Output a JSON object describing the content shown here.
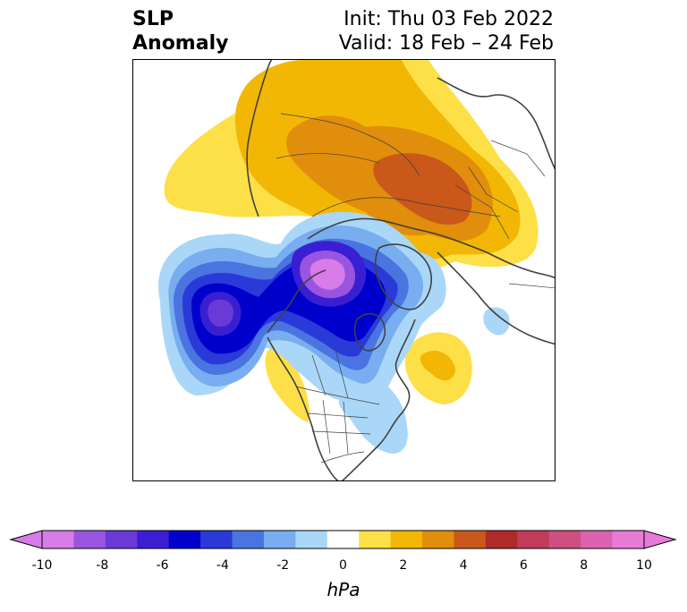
{
  "title": {
    "left_line1": "SLP",
    "left_line2": "Anomaly",
    "init": "Init: Thu 03 Feb 2022",
    "valid": "Valid: 18 Feb – 24 Feb"
  },
  "colorbar": {
    "unit": "hPa",
    "ticks": [
      "-10",
      "-8",
      "-6",
      "-4",
      "-2",
      "0",
      "2",
      "4",
      "6",
      "8",
      "10"
    ],
    "levels": [
      -10,
      -9,
      -8,
      -7,
      -6,
      -5,
      -4,
      -3,
      -2,
      -1,
      1,
      2,
      3,
      4,
      5,
      6,
      7,
      8,
      9,
      10
    ],
    "colors": [
      "#d77ce8",
      "#9a55e0",
      "#6a3ad6",
      "#3a1fd2",
      "#0000cc",
      "#2a3ad8",
      "#4a74e0",
      "#78aef0",
      "#aad7f8",
      "#ffffff",
      "#fde047",
      "#f2b705",
      "#e08e0b",
      "#c9581a",
      "#b02a2a",
      "#c23b5a",
      "#cf4f80",
      "#dc62b0",
      "#e87ad8"
    ],
    "under_color": "#d77ce8",
    "over_color": "#e87ad8"
  },
  "map": {
    "region": "Northern Hemisphere polar view",
    "anomaly_colors": {
      "light_yellow": "#fde047",
      "yellow": "#f2b705",
      "orange": "#e08e0b",
      "dark_orange": "#c9581a",
      "light_blue": "#aad7f8",
      "sky_blue": "#78aef0",
      "blue": "#4a74e0",
      "royal_blue": "#2a3ad8",
      "deep_blue": "#0000cc",
      "indigo": "#3a1fd2",
      "violet": "#6a3ad6",
      "purple": "#9a55e0",
      "orchid": "#d77ce8"
    }
  }
}
